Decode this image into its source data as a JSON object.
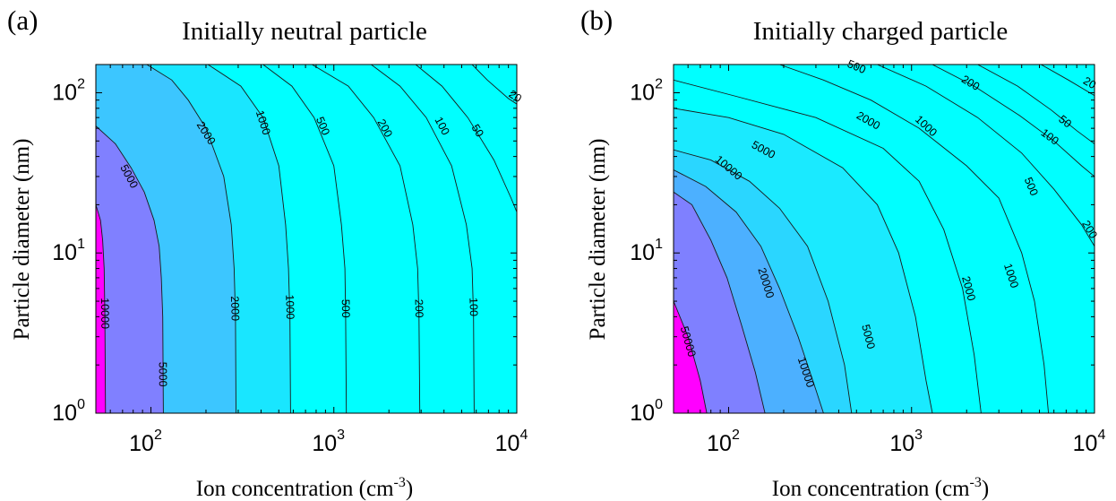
{
  "figure": {
    "background": "#ffffff",
    "line_color": "#1a1a1a"
  },
  "chart_data": [
    {
      "type": "contour",
      "panel_label": "(a)",
      "title": "Initially neutral particle",
      "xlabel_base": "Ion concentration (cm",
      "xlabel_exp": "-3",
      "xlabel_close": ")",
      "ylabel": "Particle diameter (nm)",
      "xscale": "log",
      "yscale": "log",
      "xlim": [
        50,
        10000
      ],
      "ylim": [
        1,
        150
      ],
      "x_ticks": [
        {
          "base": "10",
          "exp": "2",
          "value": 100
        },
        {
          "base": "10",
          "exp": "3",
          "value": 1000
        },
        {
          "base": "10",
          "exp": "4",
          "value": 10000
        }
      ],
      "y_ticks": [
        {
          "base": "10",
          "exp": "0",
          "value": 1
        },
        {
          "base": "10",
          "exp": "1",
          "value": 10
        },
        {
          "base": "10",
          "exp": "2",
          "value": 100
        }
      ],
      "fill_colors": [
        "#00ffff",
        "#19e6ff",
        "#3cc6ff",
        "#8080ff",
        "#ff00ff"
      ],
      "contours": [
        {
          "level": 20,
          "label": "20",
          "points": [
            [
              5700,
              150
            ],
            [
              6900,
              120
            ],
            [
              9000,
              92
            ],
            [
              10000,
              85
            ]
          ]
        },
        {
          "level": 50,
          "label": "50",
          "points": [
            [
              2800,
              150
            ],
            [
              3900,
              110
            ],
            [
              5400,
              70
            ],
            [
              7500,
              38
            ],
            [
              9300,
              22
            ],
            [
              10000,
              18
            ]
          ]
        },
        {
          "level": 100,
          "label": "100",
          "points": [
            [
              1600,
              150
            ],
            [
              2300,
              110
            ],
            [
              3200,
              70
            ],
            [
              4400,
              35
            ],
            [
              5300,
              15
            ],
            [
              5700,
              8
            ],
            [
              5800,
              4
            ],
            [
              5850,
              1
            ]
          ]
        },
        {
          "level": 200,
          "label": "200",
          "points": [
            [
              760,
              150
            ],
            [
              1200,
              110
            ],
            [
              1650,
              70
            ],
            [
              2300,
              35
            ],
            [
              2700,
              15
            ],
            [
              2870,
              8
            ],
            [
              2920,
              4
            ],
            [
              2950,
              1
            ]
          ]
        },
        {
          "level": 500,
          "label": "500",
          "points": [
            [
              410,
              150
            ],
            [
              590,
              110
            ],
            [
              780,
              70
            ],
            [
              1000,
              35
            ],
            [
              1100,
              15
            ],
            [
              1150,
              8
            ],
            [
              1160,
              4
            ],
            [
              1170,
              1
            ]
          ]
        },
        {
          "level": 1000,
          "label": "1000",
          "points": [
            [
              205,
              150
            ],
            [
              310,
              110
            ],
            [
              410,
              70
            ],
            [
              500,
              35
            ],
            [
              545,
              15
            ],
            [
              565,
              8
            ],
            [
              575,
              4
            ],
            [
              580,
              1
            ]
          ]
        },
        {
          "level": 2000,
          "label": "2000",
          "points": [
            [
              95,
              150
            ],
            [
              130,
              120
            ],
            [
              160,
              90
            ],
            [
              200,
              60
            ],
            [
              250,
              30
            ],
            [
              275,
              15
            ],
            [
              285,
              8
            ],
            [
              290,
              4
            ],
            [
              292,
              1
            ]
          ]
        },
        {
          "level": 5000,
          "label": "5000",
          "points": [
            [
              50,
              62
            ],
            [
              64,
              48
            ],
            [
              78,
              34
            ],
            [
              92,
              24
            ],
            [
              104,
              16
            ],
            [
              111,
              11
            ],
            [
              114,
              7
            ],
            [
              116,
              4
            ],
            [
              117,
              1
            ]
          ]
        },
        {
          "level": 10000,
          "label": "10000",
          "points": [
            [
              50,
              20
            ],
            [
              53,
              16
            ],
            [
              54.5,
              12
            ],
            [
              55.5,
              8
            ],
            [
              56,
              4
            ],
            [
              56.5,
              1
            ]
          ]
        }
      ],
      "label_positions": [
        {
          "text": "20",
          "x": 9800,
          "y": 95
        },
        {
          "text": "50",
          "x": 6100,
          "y": 58
        },
        {
          "text": "100",
          "x": 3900,
          "y": 62
        },
        {
          "text": "200",
          "x": 1900,
          "y": 60
        },
        {
          "text": "500",
          "x": 870,
          "y": 62
        },
        {
          "text": "1000",
          "x": 410,
          "y": 65
        },
        {
          "text": "2000",
          "x": 200,
          "y": 56
        },
        {
          "text": "5000",
          "x": 76,
          "y": 30
        },
        {
          "text": "10000",
          "x": 56,
          "y": 4.2
        },
        {
          "text": "5000",
          "x": 116,
          "y": 1.75
        },
        {
          "text": "2000",
          "x": 288,
          "y": 4.5
        },
        {
          "text": "1000",
          "x": 575,
          "y": 4.6
        },
        {
          "text": "500",
          "x": 1160,
          "y": 4.5
        },
        {
          "text": "200",
          "x": 2920,
          "y": 4.5
        },
        {
          "text": "100",
          "x": 5800,
          "y": 4.6
        }
      ]
    },
    {
      "type": "contour",
      "panel_label": "(b)",
      "title": "Initially charged particle",
      "xlabel_base": "Ion concentration (cm",
      "xlabel_exp": "-3",
      "xlabel_close": ")",
      "ylabel": "Particle diameter (nm)",
      "xscale": "log",
      "yscale": "log",
      "xlim": [
        50,
        10000
      ],
      "ylim": [
        1,
        150
      ],
      "x_ticks": [
        {
          "base": "10",
          "exp": "2",
          "value": 100
        },
        {
          "base": "10",
          "exp": "3",
          "value": 1000
        },
        {
          "base": "10",
          "exp": "4",
          "value": 10000
        }
      ],
      "y_ticks": [
        {
          "base": "10",
          "exp": "0",
          "value": 1
        },
        {
          "base": "10",
          "exp": "1",
          "value": 10
        },
        {
          "base": "10",
          "exp": "2",
          "value": 100
        }
      ],
      "fill_colors": [
        "#00ffff",
        "#1aeaff",
        "#2ad6ff",
        "#4cb0ff",
        "#7f80ff",
        "#ff00ff"
      ],
      "contours": [
        {
          "level": 20,
          "label": "20",
          "points": [
            [
              5100,
              150
            ],
            [
              7200,
              120
            ],
            [
              10000,
              96
            ]
          ]
        },
        {
          "level": 50,
          "label": "50",
          "points": [
            [
              2300,
              150
            ],
            [
              3800,
              110
            ],
            [
              5800,
              78
            ],
            [
              8000,
              58
            ],
            [
              10000,
              48
            ]
          ]
        },
        {
          "level": 100,
          "label": "100",
          "points": [
            [
              1300,
              150
            ],
            [
              2200,
              110
            ],
            [
              3900,
              72
            ],
            [
              6000,
              50
            ],
            [
              8500,
              35
            ],
            [
              10000,
              30
            ]
          ]
        },
        {
          "level": 200,
          "label": "200",
          "points": [
            [
              650,
              150
            ],
            [
              1200,
              110
            ],
            [
              2300,
              70
            ],
            [
              4000,
              42
            ],
            [
              6000,
              25
            ],
            [
              8500,
              15
            ],
            [
              10000,
              11
            ]
          ]
        },
        {
          "level": 500,
          "label": "500",
          "points": [
            [
              190,
              150
            ],
            [
              330,
              120
            ],
            [
              600,
              90
            ],
            [
              1100,
              60
            ],
            [
              2000,
              35
            ],
            [
              3000,
              22
            ],
            [
              4000,
              10
            ],
            [
              4700,
              5
            ],
            [
              5300,
              2
            ],
            [
              5600,
              1
            ]
          ]
        },
        {
          "level": 1000,
          "label": "1000",
          "points": [
            [
              50,
              120
            ],
            [
              110,
              95
            ],
            [
              300,
              70
            ],
            [
              700,
              45
            ],
            [
              1100,
              28
            ],
            [
              1500,
              14
            ],
            [
              1900,
              6
            ],
            [
              2200,
              2.3
            ],
            [
              2400,
              1
            ]
          ]
        },
        {
          "level": 2000,
          "label": "2000",
          "points": [
            [
              50,
              80
            ],
            [
              100,
              70
            ],
            [
              200,
              55
            ],
            [
              420,
              34
            ],
            [
              650,
              20
            ],
            [
              850,
              10
            ],
            [
              1050,
              4
            ],
            [
              1200,
              1.6
            ],
            [
              1300,
              1
            ]
          ]
        },
        {
          "level": 5000,
          "label": "5000",
          "points": [
            [
              50,
              44
            ],
            [
              80,
              38
            ],
            [
              130,
              28
            ],
            [
              190,
              19
            ],
            [
              270,
              11
            ],
            [
              350,
              5
            ],
            [
              430,
              2
            ],
            [
              470,
              1
            ]
          ]
        },
        {
          "level": 10000,
          "label": "10000",
          "points": [
            [
              50,
              33
            ],
            [
              75,
              26
            ],
            [
              110,
              18
            ],
            [
              150,
              11
            ],
            [
              190,
              6
            ],
            [
              240,
              3
            ],
            [
              300,
              1.4
            ],
            [
              330,
              1
            ]
          ]
        },
        {
          "level": 20000,
          "label": "20000",
          "points": [
            [
              50,
              24
            ],
            [
              63,
              20
            ],
            [
              80,
              12
            ],
            [
              98,
              7
            ],
            [
              118,
              3.5
            ],
            [
              140,
              1.8
            ],
            [
              158,
              1
            ]
          ]
        },
        {
          "level": 50000,
          "label": "50000",
          "points": [
            [
              50,
              5
            ],
            [
              60,
              3
            ],
            [
              70,
              1.6
            ],
            [
              76,
              1
            ]
          ]
        }
      ],
      "label_positions": [
        {
          "text": "20",
          "x": 9400,
          "y": 115
        },
        {
          "text": "50",
          "x": 6900,
          "y": 66
        },
        {
          "text": "100",
          "x": 5700,
          "y": 53
        },
        {
          "text": "200",
          "x": 2100,
          "y": 115
        },
        {
          "text": "500",
          "x": 500,
          "y": 145
        },
        {
          "text": "200",
          "x": 9400,
          "y": 14
        },
        {
          "text": "500",
          "x": 4500,
          "y": 26
        },
        {
          "text": "1000",
          "x": 1200,
          "y": 62
        },
        {
          "text": "2000",
          "x": 580,
          "y": 67
        },
        {
          "text": "5000",
          "x": 155,
          "y": 44
        },
        {
          "text": "10000",
          "x": 100,
          "y": 34
        },
        {
          "text": "20000",
          "x": 160,
          "y": 6.5
        },
        {
          "text": "2000",
          "x": 2050,
          "y": 6.0
        },
        {
          "text": "1000",
          "x": 3500,
          "y": 7.2
        },
        {
          "text": "5000",
          "x": 580,
          "y": 3.0
        },
        {
          "text": "10000",
          "x": 265,
          "y": 1.8
        },
        {
          "text": "50000",
          "x": 60,
          "y": 2.8
        }
      ]
    }
  ]
}
